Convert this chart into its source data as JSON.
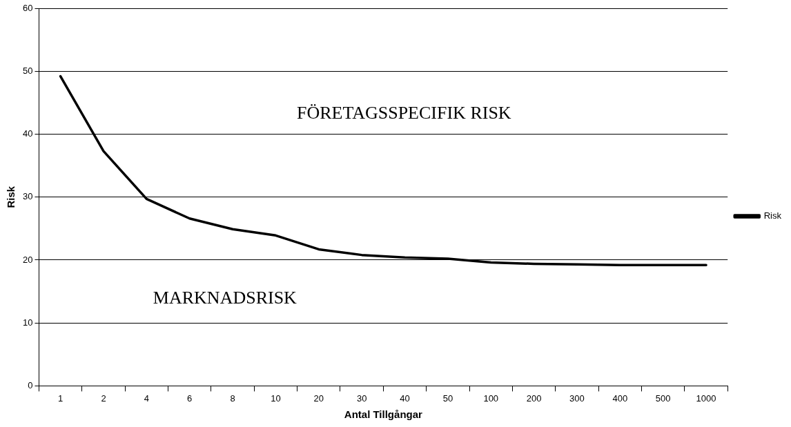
{
  "chart_data": {
    "type": "line",
    "xlabel": "Antal Tillgångar",
    "ylabel": "Risk",
    "categories": [
      "1",
      "2",
      "4",
      "6",
      "8",
      "10",
      "20",
      "30",
      "40",
      "50",
      "100",
      "200",
      "300",
      "400",
      "500",
      "1000"
    ],
    "series": [
      {
        "name": "Risk",
        "color": "#000000",
        "values": [
          49.2,
          37.3,
          29.7,
          26.6,
          24.9,
          23.9,
          21.7,
          20.8,
          20.4,
          20.2,
          19.6,
          19.4,
          19.3,
          19.2,
          19.2,
          19.2
        ]
      }
    ],
    "ylim": [
      0,
      60
    ],
    "yticks": [
      0,
      10,
      20,
      30,
      40,
      50,
      60
    ],
    "grid": "y",
    "legend": "right",
    "marker": "none",
    "line_style": "solid",
    "annotations": [
      "FÖRETAGSSPECIFIK RISK",
      "MARKNADSRISK"
    ]
  }
}
